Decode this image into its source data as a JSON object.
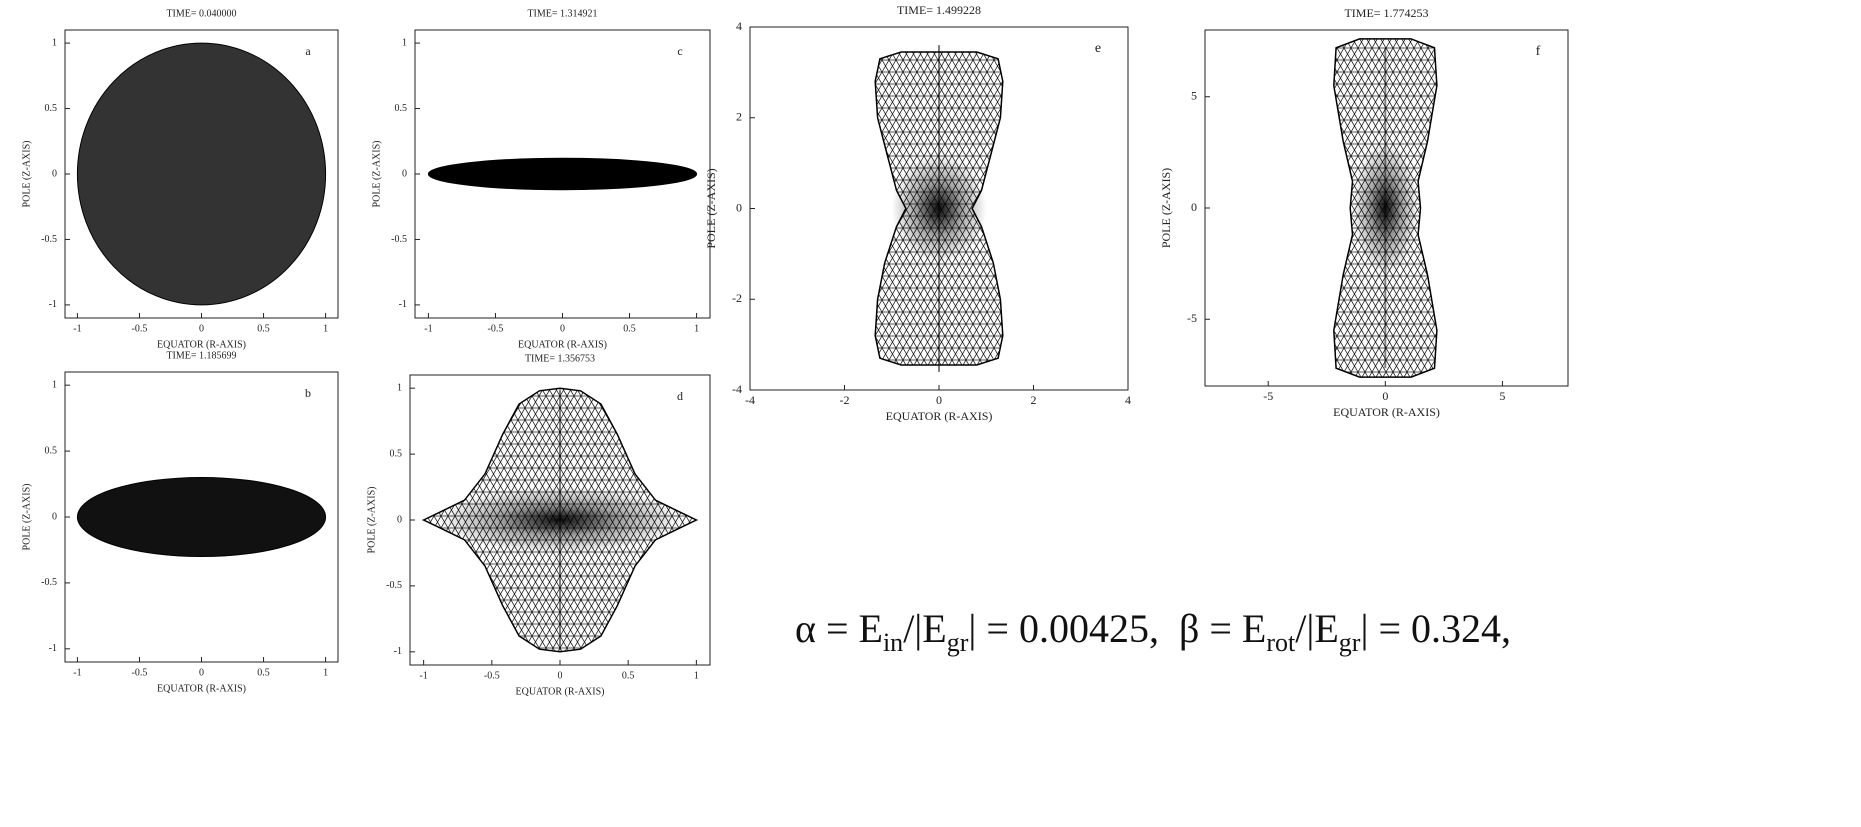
{
  "chart_data": [
    {
      "type": "mesh",
      "title": "TIME=  0.040000",
      "label": "a",
      "xlabel": "EQUATOR (R-AXIS)",
      "ylabel": "POLE (Z-AXIS)",
      "xlim": [
        -1.1,
        1.1
      ],
      "ylim": [
        -1.1,
        1.1
      ],
      "xticks": [
        -1,
        -0.5,
        0,
        0.5,
        1
      ],
      "yticks": [
        -1,
        -0.5,
        0,
        0.5,
        1
      ]
    },
    {
      "type": "mesh",
      "title": "TIME=  1.185699",
      "label": "b",
      "xlabel": "EQUATOR (R-AXIS)",
      "ylabel": "POLE (Z-AXIS)",
      "xlim": [
        -1.1,
        1.1
      ],
      "ylim": [
        -1.1,
        1.1
      ],
      "xticks": [
        -1,
        -0.5,
        0,
        0.5,
        1
      ],
      "yticks": [
        -1,
        -0.5,
        0,
        0.5,
        1
      ]
    },
    {
      "type": "mesh",
      "title": "TIME=  1.314921",
      "label": "c",
      "xlabel": "EQUATOR (R-AXIS)",
      "ylabel": "POLE (Z-AXIS)",
      "xlim": [
        -1.1,
        1.1
      ],
      "ylim": [
        -1.1,
        1.1
      ],
      "xticks": [
        -1,
        -0.5,
        0,
        0.5,
        1
      ],
      "yticks": [
        -1,
        -0.5,
        0,
        0.5,
        1
      ]
    },
    {
      "type": "mesh",
      "title": "TIME=  1.356753",
      "label": "d",
      "xlabel": "EQUATOR (R-AXIS)",
      "ylabel": "POLE (Z-AXIS)",
      "xlim": [
        -1.1,
        1.1
      ],
      "ylim": [
        -1.1,
        1.1
      ],
      "xticks": [
        -1,
        -0.5,
        0,
        0.5,
        1
      ],
      "yticks": [
        -1,
        -0.5,
        0,
        0.5,
        1
      ]
    },
    {
      "type": "mesh",
      "title": "TIME=  1.499228",
      "label": "e",
      "xlabel": "EQUATOR (R-AXIS)",
      "ylabel": "POLE (Z-AXIS)",
      "xlim": [
        -4,
        4
      ],
      "ylim": [
        -4,
        4
      ],
      "xticks": [
        -4,
        -2,
        0,
        2,
        4
      ],
      "yticks": [
        -4,
        -2,
        0,
        2,
        4
      ]
    },
    {
      "type": "mesh",
      "title": "TIME=  1.774253",
      "label": "f",
      "xlabel": "EQUATOR (R-AXIS)",
      "ylabel": "POLE (Z-AXIS)",
      "xlim": [
        -7.7,
        7.8
      ],
      "ylim": [
        -8,
        8
      ],
      "xticks": [
        -5,
        0,
        5
      ],
      "yticks": [
        -5,
        0,
        5
      ]
    }
  ],
  "equation": [
    "α = E",
    "in",
    "/|E",
    "gr",
    "| = 0.00425,  β = E",
    "rot",
    "/|E",
    "gr",
    "| = 0.324,"
  ]
}
